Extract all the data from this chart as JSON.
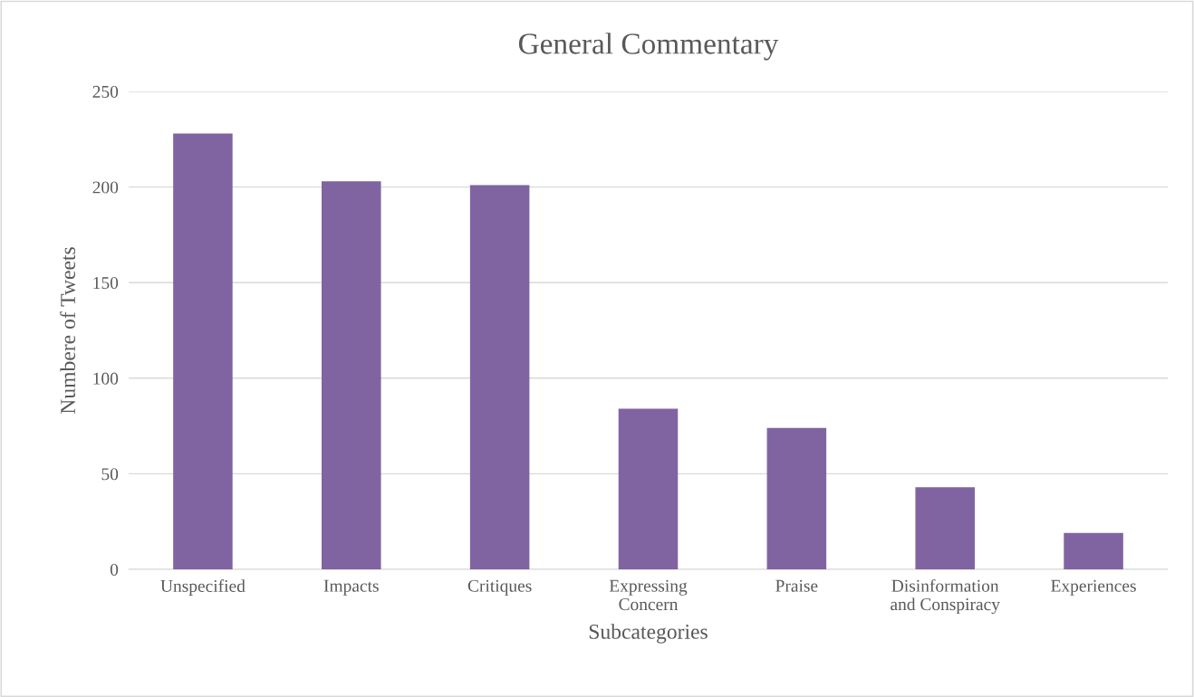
{
  "chart_data": {
    "type": "bar",
    "title": "General Commentary",
    "xlabel": "Subcategories",
    "ylabel": "Numbere of Tweets",
    "categories": [
      "Unspecified",
      "Impacts",
      "Critiques",
      "Expressing Concern",
      "Praise",
      "Disinformation and Conspiracy",
      "Experiences"
    ],
    "values": [
      228,
      203,
      201,
      84,
      74,
      43,
      19
    ],
    "color": "#8064a2",
    "ylim": [
      0,
      250
    ],
    "yticks": [
      0,
      50,
      100,
      150,
      200,
      250
    ],
    "grid": "y",
    "legend": false
  }
}
